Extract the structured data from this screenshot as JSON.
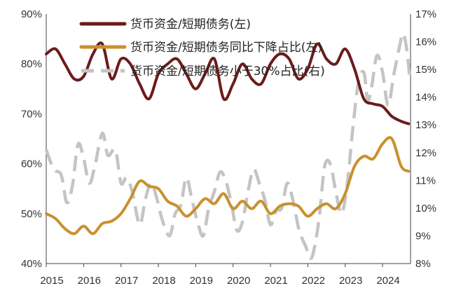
{
  "chart_data": {
    "type": "line",
    "title": "",
    "x_start": 2015.0,
    "x_end": 2024.75,
    "x_tick_labels": [
      "2015",
      "2016",
      "2017",
      "2018",
      "2019",
      "2020",
      "2021",
      "2022",
      "2023",
      "2024"
    ],
    "x_tick_values": [
      2015,
      2016,
      2017,
      2018,
      2019,
      2020,
      2021,
      2022,
      2023,
      2024
    ],
    "left_axis": {
      "ylim": [
        40,
        90
      ],
      "ticks": [
        40,
        50,
        60,
        70,
        80,
        90
      ],
      "tick_labels": [
        "40%",
        "50%",
        "60%",
        "70%",
        "80%",
        "90%"
      ]
    },
    "right_axis": {
      "ylim": [
        8,
        17
      ],
      "ticks": [
        8,
        9,
        10,
        11,
        12,
        13,
        14,
        15,
        16,
        17
      ],
      "tick_labels": [
        "8%",
        "9%",
        "10%",
        "11%",
        "12%",
        "13%",
        "14%",
        "15%",
        "16%",
        "17%"
      ]
    },
    "series": [
      {
        "name": "货币资金/短期债务(左)",
        "axis": "left",
        "color": "#6b1c1c",
        "style": "solid",
        "points": [
          [
            2015.0,
            82
          ],
          [
            2015.25,
            83
          ],
          [
            2015.5,
            80
          ],
          [
            2015.75,
            77
          ],
          [
            2016.0,
            77.5
          ],
          [
            2016.25,
            82
          ],
          [
            2016.5,
            84
          ],
          [
            2016.75,
            77
          ],
          [
            2017.0,
            81
          ],
          [
            2017.25,
            80
          ],
          [
            2017.5,
            76
          ],
          [
            2017.75,
            73
          ],
          [
            2018.0,
            78
          ],
          [
            2018.25,
            80
          ],
          [
            2018.5,
            81
          ],
          [
            2018.75,
            78
          ],
          [
            2019.0,
            75
          ],
          [
            2019.25,
            78
          ],
          [
            2019.5,
            81
          ],
          [
            2019.75,
            73
          ],
          [
            2020.0,
            76
          ],
          [
            2020.25,
            80
          ],
          [
            2020.5,
            77
          ],
          [
            2020.75,
            76
          ],
          [
            2021.0,
            80
          ],
          [
            2021.25,
            82
          ],
          [
            2021.5,
            81
          ],
          [
            2021.75,
            77
          ],
          [
            2022.0,
            79
          ],
          [
            2022.25,
            84
          ],
          [
            2022.5,
            81
          ],
          [
            2022.75,
            80
          ],
          [
            2023.0,
            83
          ],
          [
            2023.25,
            79
          ],
          [
            2023.5,
            73
          ],
          [
            2023.75,
            72
          ],
          [
            2024.0,
            71.5
          ],
          [
            2024.25,
            69.5
          ],
          [
            2024.5,
            68.5
          ],
          [
            2024.7,
            68
          ]
        ]
      },
      {
        "name": "货币资金/短期债务同比下降占比(左)",
        "axis": "left",
        "color": "#c8912e",
        "style": "solid",
        "points": [
          [
            2015.0,
            50
          ],
          [
            2015.25,
            49
          ],
          [
            2015.5,
            47
          ],
          [
            2015.75,
            46
          ],
          [
            2016.0,
            47.5
          ],
          [
            2016.25,
            46
          ],
          [
            2016.5,
            48
          ],
          [
            2016.75,
            48.5
          ],
          [
            2017.0,
            50
          ],
          [
            2017.25,
            53
          ],
          [
            2017.5,
            56.5
          ],
          [
            2017.75,
            55.5
          ],
          [
            2018.0,
            55
          ],
          [
            2018.25,
            52.5
          ],
          [
            2018.5,
            51.5
          ],
          [
            2018.75,
            49.5
          ],
          [
            2019.0,
            51
          ],
          [
            2019.25,
            53
          ],
          [
            2019.5,
            52
          ],
          [
            2019.75,
            54
          ],
          [
            2020.0,
            51
          ],
          [
            2020.25,
            52.5
          ],
          [
            2020.5,
            51
          ],
          [
            2020.75,
            52.5
          ],
          [
            2021.0,
            50
          ],
          [
            2021.25,
            51.5
          ],
          [
            2021.5,
            52
          ],
          [
            2021.75,
            51.5
          ],
          [
            2022.0,
            49.5
          ],
          [
            2022.25,
            51
          ],
          [
            2022.5,
            52
          ],
          [
            2022.75,
            51
          ],
          [
            2023.0,
            54
          ],
          [
            2023.25,
            59.5
          ],
          [
            2023.5,
            61.5
          ],
          [
            2023.75,
            61
          ],
          [
            2024.0,
            64
          ],
          [
            2024.25,
            65
          ],
          [
            2024.5,
            59.5
          ],
          [
            2024.7,
            58.5
          ]
        ]
      },
      {
        "name": "货币资金/短期债务小于30%占比(右)",
        "axis": "right",
        "color": "#c4c4c4",
        "style": "dashed",
        "points": [
          [
            2015.0,
            12.1
          ],
          [
            2015.2,
            11.4
          ],
          [
            2015.4,
            11.2
          ],
          [
            2015.55,
            10.2
          ],
          [
            2015.7,
            10.8
          ],
          [
            2015.85,
            12.3
          ],
          [
            2016.0,
            11.8
          ],
          [
            2016.15,
            10.9
          ],
          [
            2016.3,
            11.5
          ],
          [
            2016.5,
            12.7
          ],
          [
            2016.65,
            11.9
          ],
          [
            2016.85,
            12.1
          ],
          [
            2017.0,
            10.9
          ],
          [
            2017.15,
            11.1
          ],
          [
            2017.3,
            10.6
          ],
          [
            2017.5,
            9.4
          ],
          [
            2017.65,
            10.3
          ],
          [
            2017.8,
            10.9
          ],
          [
            2017.95,
            10.4
          ],
          [
            2018.1,
            9.6
          ],
          [
            2018.3,
            9.0
          ],
          [
            2018.45,
            9.8
          ],
          [
            2018.6,
            10.1
          ],
          [
            2018.75,
            11.1
          ],
          [
            2018.9,
            10.3
          ],
          [
            2019.05,
            9.5
          ],
          [
            2019.2,
            9.0
          ],
          [
            2019.35,
            10.0
          ],
          [
            2019.5,
            10.6
          ],
          [
            2019.65,
            11.3
          ],
          [
            2019.8,
            11.0
          ],
          [
            2019.95,
            10.2
          ],
          [
            2020.1,
            9.2
          ],
          [
            2020.25,
            9.5
          ],
          [
            2020.4,
            10.6
          ],
          [
            2020.55,
            11.4
          ],
          [
            2020.7,
            10.9
          ],
          [
            2020.85,
            10.3
          ],
          [
            2021.0,
            9.4
          ],
          [
            2021.15,
            9.9
          ],
          [
            2021.3,
            10.0
          ],
          [
            2021.45,
            10.9
          ],
          [
            2021.6,
            10.3
          ],
          [
            2021.75,
            9.3
          ],
          [
            2021.85,
            8.9
          ],
          [
            2021.95,
            8.6
          ],
          [
            2022.05,
            8.2
          ],
          [
            2022.15,
            8.4
          ],
          [
            2022.3,
            9.6
          ],
          [
            2022.45,
            11.5
          ],
          [
            2022.6,
            11.6
          ],
          [
            2022.75,
            10.6
          ],
          [
            2022.9,
            9.8
          ],
          [
            2023.05,
            10.8
          ],
          [
            2023.2,
            12.8
          ],
          [
            2023.35,
            14.5
          ],
          [
            2023.5,
            14.9
          ],
          [
            2023.6,
            13.9
          ],
          [
            2023.7,
            14.3
          ],
          [
            2023.85,
            15.5
          ],
          [
            2024.0,
            14.9
          ],
          [
            2024.15,
            13.7
          ],
          [
            2024.3,
            14.8
          ],
          [
            2024.45,
            15.8
          ],
          [
            2024.55,
            16.3
          ],
          [
            2024.65,
            15.7
          ],
          [
            2024.72,
            14.8
          ]
        ]
      }
    ]
  }
}
